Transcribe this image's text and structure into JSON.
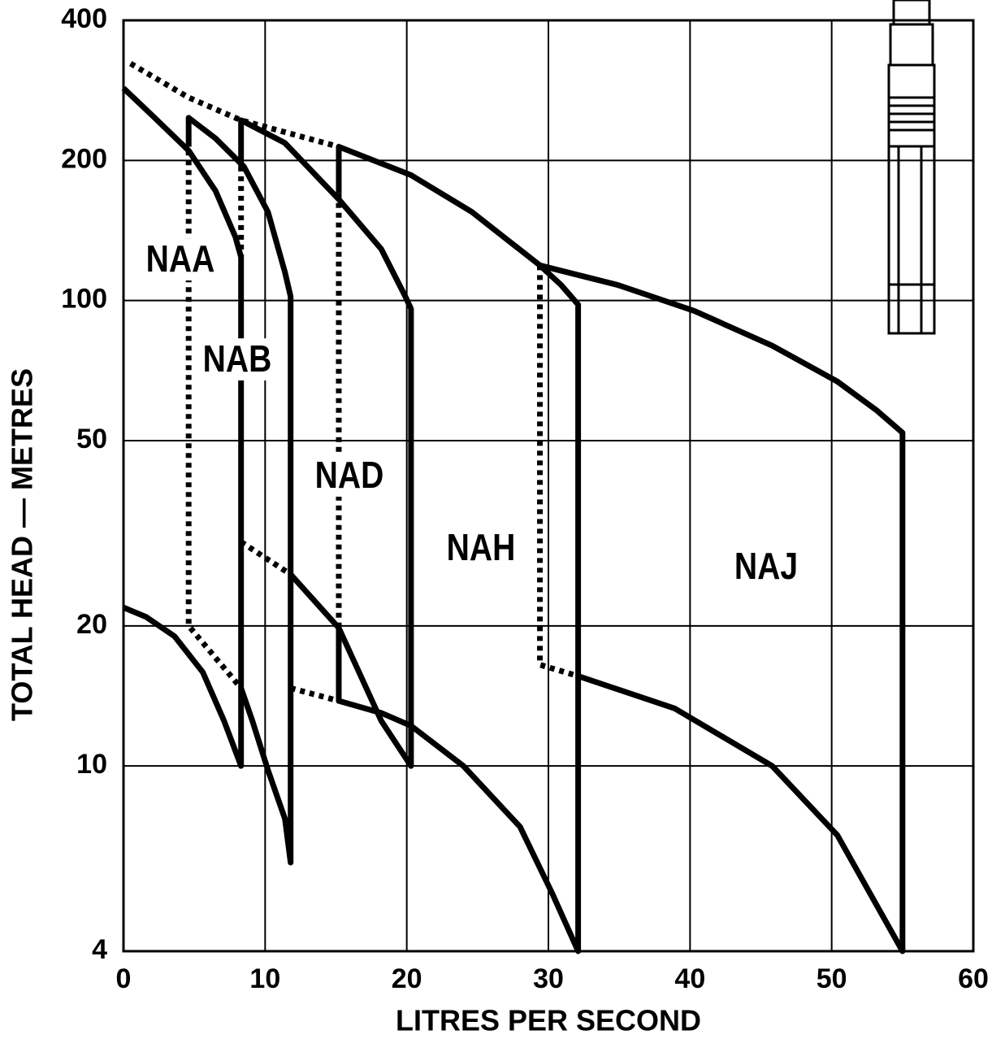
{
  "chart_data": {
    "type": "line",
    "xlabel": "LITRES PER SECOND",
    "ylabel": "TOTAL HEAD — METRES",
    "log_y": true,
    "grid": true,
    "color": "#000000",
    "xlim": [
      0,
      60
    ],
    "xticks": [
      0,
      10,
      20,
      30,
      40,
      50,
      60
    ],
    "ylim": [
      4,
      400
    ],
    "yticks": [
      4,
      10,
      20,
      50,
      100,
      200,
      400
    ],
    "series": [
      {
        "name": "NAA",
        "x": [
          0,
          2.2,
          4.6,
          6.5,
          7.9,
          8.3,
          8.3,
          7.1,
          5.6,
          3.6,
          1.6,
          0
        ],
        "values": [
          286,
          247,
          210,
          172,
          137,
          124,
          10,
          12.5,
          15.9,
          19,
          20.9,
          21.9
        ]
      },
      {
        "name": "NAB",
        "x": [
          4.6,
          4.6,
          6.5,
          8.5,
          10.2,
          11.4,
          11.8,
          11.8,
          11.4,
          10.2,
          9.1,
          8.3
        ],
        "values": [
          214,
          247,
          223,
          194,
          155,
          115,
          102,
          6.2,
          7.7,
          9.8,
          12.5,
          14.7
        ]
      },
      {
        "name": "NAD",
        "x": [
          8.3,
          8.3,
          11.4,
          15.2,
          18.2,
          19.9,
          20.3,
          20.3,
          18.2,
          15.2,
          11.8
        ],
        "values": [
          194,
          244,
          218,
          165,
          129,
          102,
          96,
          10,
          12.5,
          19.8,
          25.8
        ]
      },
      {
        "name": "NAH",
        "x": [
          15.2,
          15.2,
          20.3,
          24.6,
          29.4,
          30.9,
          32.1,
          32.1,
          30.3,
          28,
          24,
          20.3,
          18.2,
          15.2,
          15.2
        ],
        "values": [
          170,
          214,
          186,
          155,
          119,
          108,
          98,
          4,
          5.3,
          7.4,
          10,
          12.2,
          13,
          13.8,
          19.8
        ]
      },
      {
        "name": "NAJ",
        "x": [
          29.4,
          34.9,
          40.3,
          45.8,
          50.4,
          53.2,
          55,
          55,
          50.4,
          45.8,
          38.9,
          32.1
        ],
        "values": [
          119,
          108,
          95,
          80,
          67,
          58,
          52,
          4,
          7.1,
          10,
          13.3,
          15.6
        ]
      }
    ],
    "boundaries": [
      {
        "x": [
          0.5,
          4.6,
          8.3,
          15.2
        ],
        "values": [
          323,
          273,
          244,
          214
        ]
      },
      {
        "x": [
          4.6,
          4.6,
          8.3
        ],
        "values": [
          210,
          20,
          14.7
        ]
      },
      {
        "x": [
          8.3,
          8.3
        ],
        "values": [
          194,
          124
        ]
      },
      {
        "x": [
          8.3,
          11.8
        ],
        "values": [
          30.3,
          25.8
        ]
      },
      {
        "x": [
          11.8,
          15.2
        ],
        "values": [
          14.7,
          13.8
        ]
      },
      {
        "x": [
          15.2,
          15.2
        ],
        "values": [
          170,
          20
        ]
      },
      {
        "x": [
          29.4,
          29.4,
          32.1
        ],
        "values": [
          119,
          16.5,
          15.6
        ]
      }
    ]
  }
}
